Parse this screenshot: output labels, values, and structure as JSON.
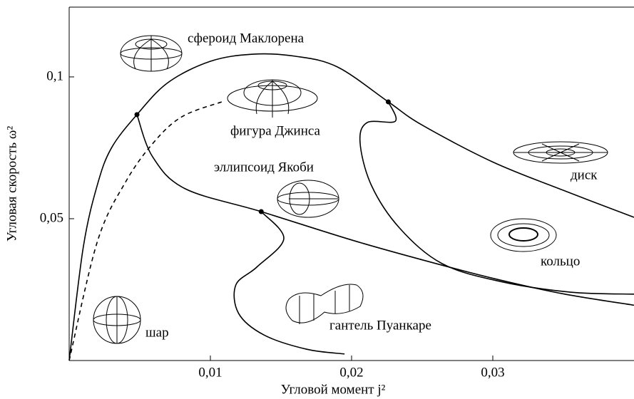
{
  "chart_data": {
    "type": "line",
    "xlabel": "Угловой момент j²",
    "ylabel": "Угловая скорость ω²",
    "xlim": [
      0,
      0.04
    ],
    "ylim": [
      0,
      0.1246
    ],
    "xticks": [
      {
        "value": 0.01,
        "label": "0,01"
      },
      {
        "value": 0.02,
        "label": "0,02"
      },
      {
        "value": 0.03,
        "label": "0,03"
      }
    ],
    "yticks": [
      {
        "value": 0.05,
        "label": "0,05"
      },
      {
        "value": 0.1,
        "label": "0,1"
      }
    ],
    "series": [
      {
        "color": "#000000",
        "dashed": false,
        "x": [
          0,
          0.001,
          0.002,
          0.003,
          0.0048,
          0.007,
          0.01,
          0.013,
          0.016,
          0.019,
          0.0226,
          0.025,
          0.03,
          0.035,
          0.04
        ],
        "values": [
          0,
          0.04,
          0.062,
          0.075,
          0.0867,
          0.098,
          0.1055,
          0.108,
          0.1073,
          0.1035,
          0.0912,
          0.083,
          0.07,
          0.06,
          0.0505
        ]
      },
      {
        "color": "#000000",
        "dashed": true,
        "x": [
          0,
          0.002,
          0.004,
          0.006,
          0.008,
          0.0108
        ],
        "values": [
          0,
          0.042,
          0.063,
          0.077,
          0.086,
          0.0912
        ]
      },
      {
        "color": "#000000",
        "dashed": false,
        "x": [
          0.0048,
          0.0059,
          0.0082,
          0.0136,
          0.02,
          0.025,
          0.03,
          0.035,
          0.04
        ],
        "values": [
          0.0867,
          0.0719,
          0.0606,
          0.0525,
          0.0425,
          0.0355,
          0.029,
          0.0235,
          0.0195
        ]
      },
      {
        "color": "#000000",
        "dashed": false,
        "x": [
          0.0136,
          0.0152,
          0.0133,
          0.0118,
          0.012,
          0.0138,
          0.0168,
          0.0195
        ],
        "values": [
          0.0525,
          0.043,
          0.033,
          0.0266,
          0.0166,
          0.009,
          0.004,
          0.0023
        ]
      },
      {
        "color": "#000000",
        "dashed": false,
        "x": [
          0.0226,
          0.0231,
          0.0211,
          0.0206,
          0.0214,
          0.0234,
          0.0264,
          0.0305,
          0.0355,
          0.04
        ],
        "values": [
          0.0912,
          0.0844,
          0.0839,
          0.0769,
          0.0618,
          0.0467,
          0.0342,
          0.0279,
          0.0241,
          0.0234
        ]
      }
    ],
    "points": {
      "x": [
        0.0048,
        0.0136,
        0.0226
      ],
      "values": [
        0.0867,
        0.0525,
        0.0912
      ]
    },
    "annotations": [
      "сфероид Маклорена",
      "фигура Джинса",
      "эллипсоид Якоби",
      "диск",
      "кольцо",
      "гантель Пуанкаре",
      "шар"
    ]
  }
}
